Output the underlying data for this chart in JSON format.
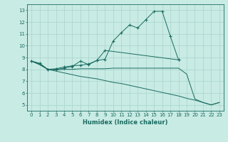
{
  "xlabel": "Humidex (Indice chaleur)",
  "xlim": [
    -0.5,
    23.5
  ],
  "ylim": [
    4.5,
    13.5
  ],
  "xticks": [
    0,
    1,
    2,
    3,
    4,
    5,
    6,
    7,
    8,
    9,
    10,
    11,
    12,
    13,
    14,
    15,
    16,
    17,
    18,
    19,
    20,
    21,
    22,
    23
  ],
  "yticks": [
    5,
    6,
    7,
    8,
    9,
    10,
    11,
    12,
    13
  ],
  "background_color": "#c8ebe4",
  "grid_color": "#a8d4cc",
  "line_color": "#1a6b60",
  "lines": [
    {
      "x": [
        0,
        1,
        2,
        3,
        4,
        5,
        6,
        7,
        8,
        9,
        10,
        11,
        12,
        13,
        14,
        15,
        16,
        17,
        18
      ],
      "y": [
        8.7,
        8.5,
        8.0,
        8.0,
        8.1,
        8.25,
        8.7,
        8.4,
        8.75,
        8.85,
        10.4,
        11.1,
        11.75,
        11.5,
        12.2,
        12.9,
        12.9,
        10.8,
        8.8
      ],
      "marker": true,
      "linestyle": "-"
    },
    {
      "x": [
        0,
        1,
        2,
        3,
        4,
        5,
        6,
        7,
        8,
        9,
        18
      ],
      "y": [
        8.7,
        8.5,
        8.0,
        8.05,
        8.2,
        8.3,
        8.35,
        8.45,
        8.75,
        9.6,
        8.8
      ],
      "marker": true,
      "linestyle": "-"
    },
    {
      "x": [
        0,
        1,
        2,
        3,
        4,
        5,
        6,
        7,
        8,
        9,
        10,
        11,
        12,
        13,
        14,
        15,
        16,
        17,
        18,
        19,
        20,
        21,
        22,
        23
      ],
      "y": [
        8.7,
        8.4,
        8.0,
        7.95,
        8.0,
        8.0,
        8.05,
        8.05,
        8.05,
        8.05,
        8.1,
        8.1,
        8.1,
        8.1,
        8.1,
        8.1,
        8.1,
        8.1,
        8.1,
        7.6,
        5.5,
        5.2,
        5.0,
        5.2
      ],
      "marker": false,
      "linestyle": "-"
    },
    {
      "x": [
        0,
        1,
        2,
        3,
        4,
        5,
        6,
        7,
        8,
        9,
        10,
        11,
        12,
        13,
        14,
        15,
        16,
        17,
        18,
        19,
        20,
        21,
        22,
        23
      ],
      "y": [
        8.7,
        8.4,
        8.0,
        7.85,
        7.7,
        7.55,
        7.4,
        7.3,
        7.2,
        7.05,
        6.9,
        6.8,
        6.65,
        6.5,
        6.35,
        6.2,
        6.05,
        5.9,
        5.75,
        5.55,
        5.4,
        5.2,
        5.0,
        5.2
      ],
      "marker": false,
      "linestyle": "-"
    }
  ]
}
